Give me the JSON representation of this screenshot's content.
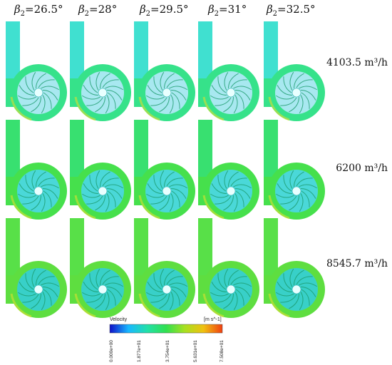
{
  "columns": [
    {
      "symbol": "β",
      "subscript": "2",
      "value": "=26.5°"
    },
    {
      "symbol": "β",
      "subscript": "2",
      "value": "=28°"
    },
    {
      "symbol": "β",
      "subscript": "2",
      "value": "=29.5°"
    },
    {
      "symbol": "β",
      "subscript": "2",
      "value": "=31°"
    },
    {
      "symbol": "β",
      "subscript": "2",
      "value": "=32.5°"
    }
  ],
  "rows": [
    {
      "label": "4103.5 m³/h"
    },
    {
      "label": "6200 m³/h"
    },
    {
      "label": "8545.7 m³/h"
    }
  ],
  "colorbar": {
    "title": "Velocity",
    "unit": "[m s^-1]",
    "ticks": [
      "0.000e+00",
      "1.877e+01",
      "3.754e+01",
      "5.631e+01",
      "7.508e+01"
    ],
    "colors": [
      "#1010c8",
      "#18b8ff",
      "#22e0a8",
      "#30e050",
      "#a8e020",
      "#f0c010",
      "#f04010"
    ]
  },
  "fields": {
    "row1": {
      "pipe": "#40e0d0",
      "volute": "#36e28a",
      "impeller": "#a8e8f0"
    },
    "row2": {
      "pipe": "#38e070",
      "volute": "#46e04c",
      "impeller": "#4ad8d8"
    },
    "row3": {
      "pipe": "#58e048",
      "volute": "#5ede40",
      "impeller": "#38d0c8"
    }
  }
}
